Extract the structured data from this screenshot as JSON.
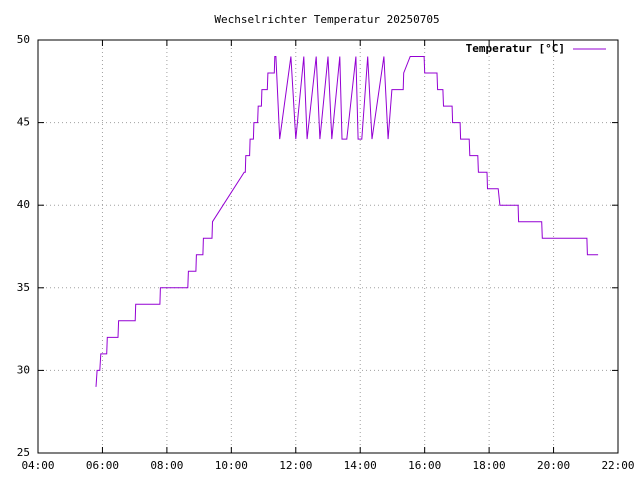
{
  "chart_data": {
    "type": "line",
    "title": "Wechselrichter Temperatur 20250705",
    "legend": "top-right",
    "grid": true,
    "x": [
      "05:48",
      "05:50",
      "05:55",
      "05:57",
      "06:08",
      "06:09",
      "06:29",
      "06:30",
      "07:01",
      "07:02",
      "07:47",
      "07:48",
      "08:39",
      "08:40",
      "08:54",
      "08:55",
      "09:07",
      "09:08",
      "09:24",
      "09:25",
      "10:24",
      "10:26",
      "10:27",
      "10:34",
      "10:35",
      "10:41",
      "10:42",
      "10:49",
      "10:50",
      "10:56",
      "10:57",
      "11:07",
      "11:08",
      "11:20",
      "11:21",
      "11:23",
      "11:30",
      "11:51",
      "12:00",
      "12:15",
      "12:21",
      "12:38",
      "12:45",
      "13:00",
      "13:07",
      "13:22",
      "13:26",
      "13:35",
      "13:52",
      "13:56",
      "14:03",
      "14:14",
      "14:22",
      "14:44",
      "14:52",
      "14:59",
      "15:20",
      "15:21",
      "15:33",
      "15:59",
      "16:00",
      "16:23",
      "16:24",
      "16:34",
      "16:35",
      "16:51",
      "16:52",
      "17:06",
      "17:07",
      "17:23",
      "17:24",
      "17:39",
      "17:40",
      "17:56",
      "17:57",
      "18:17",
      "18:20",
      "18:54",
      "18:55",
      "19:38",
      "19:39",
      "20:57",
      "20:58",
      "21:02",
      "21:03",
      "21:23"
    ],
    "series": [
      {
        "name": "Temperatur [°C]",
        "color": "#9400d3",
        "values": [
          29,
          30,
          30,
          31,
          31,
          32,
          32,
          33,
          33,
          34,
          34,
          35,
          35,
          36,
          36,
          37,
          37,
          38,
          38,
          39,
          42,
          42,
          43,
          43,
          44,
          44,
          45,
          45,
          46,
          46,
          47,
          47,
          48,
          48,
          49,
          49,
          44,
          49,
          44,
          49,
          44,
          49,
          44,
          49,
          44,
          49,
          44,
          44,
          49,
          44,
          44,
          49,
          44,
          49,
          44,
          47,
          47,
          48,
          49,
          49,
          48,
          48,
          47,
          47,
          46,
          46,
          45,
          45,
          44,
          44,
          43,
          43,
          42,
          42,
          41,
          41,
          40,
          40,
          39,
          39,
          38,
          38,
          38,
          38,
          37,
          37
        ]
      }
    ],
    "xlim": [
      "04:00",
      "22:00"
    ],
    "xticks": [
      "04:00",
      "06:00",
      "08:00",
      "10:00",
      "12:00",
      "14:00",
      "16:00",
      "18:00",
      "20:00",
      "22:00"
    ],
    "ylim": [
      25,
      50
    ],
    "yticks": [
      25,
      30,
      35,
      40,
      45,
      50
    ]
  }
}
